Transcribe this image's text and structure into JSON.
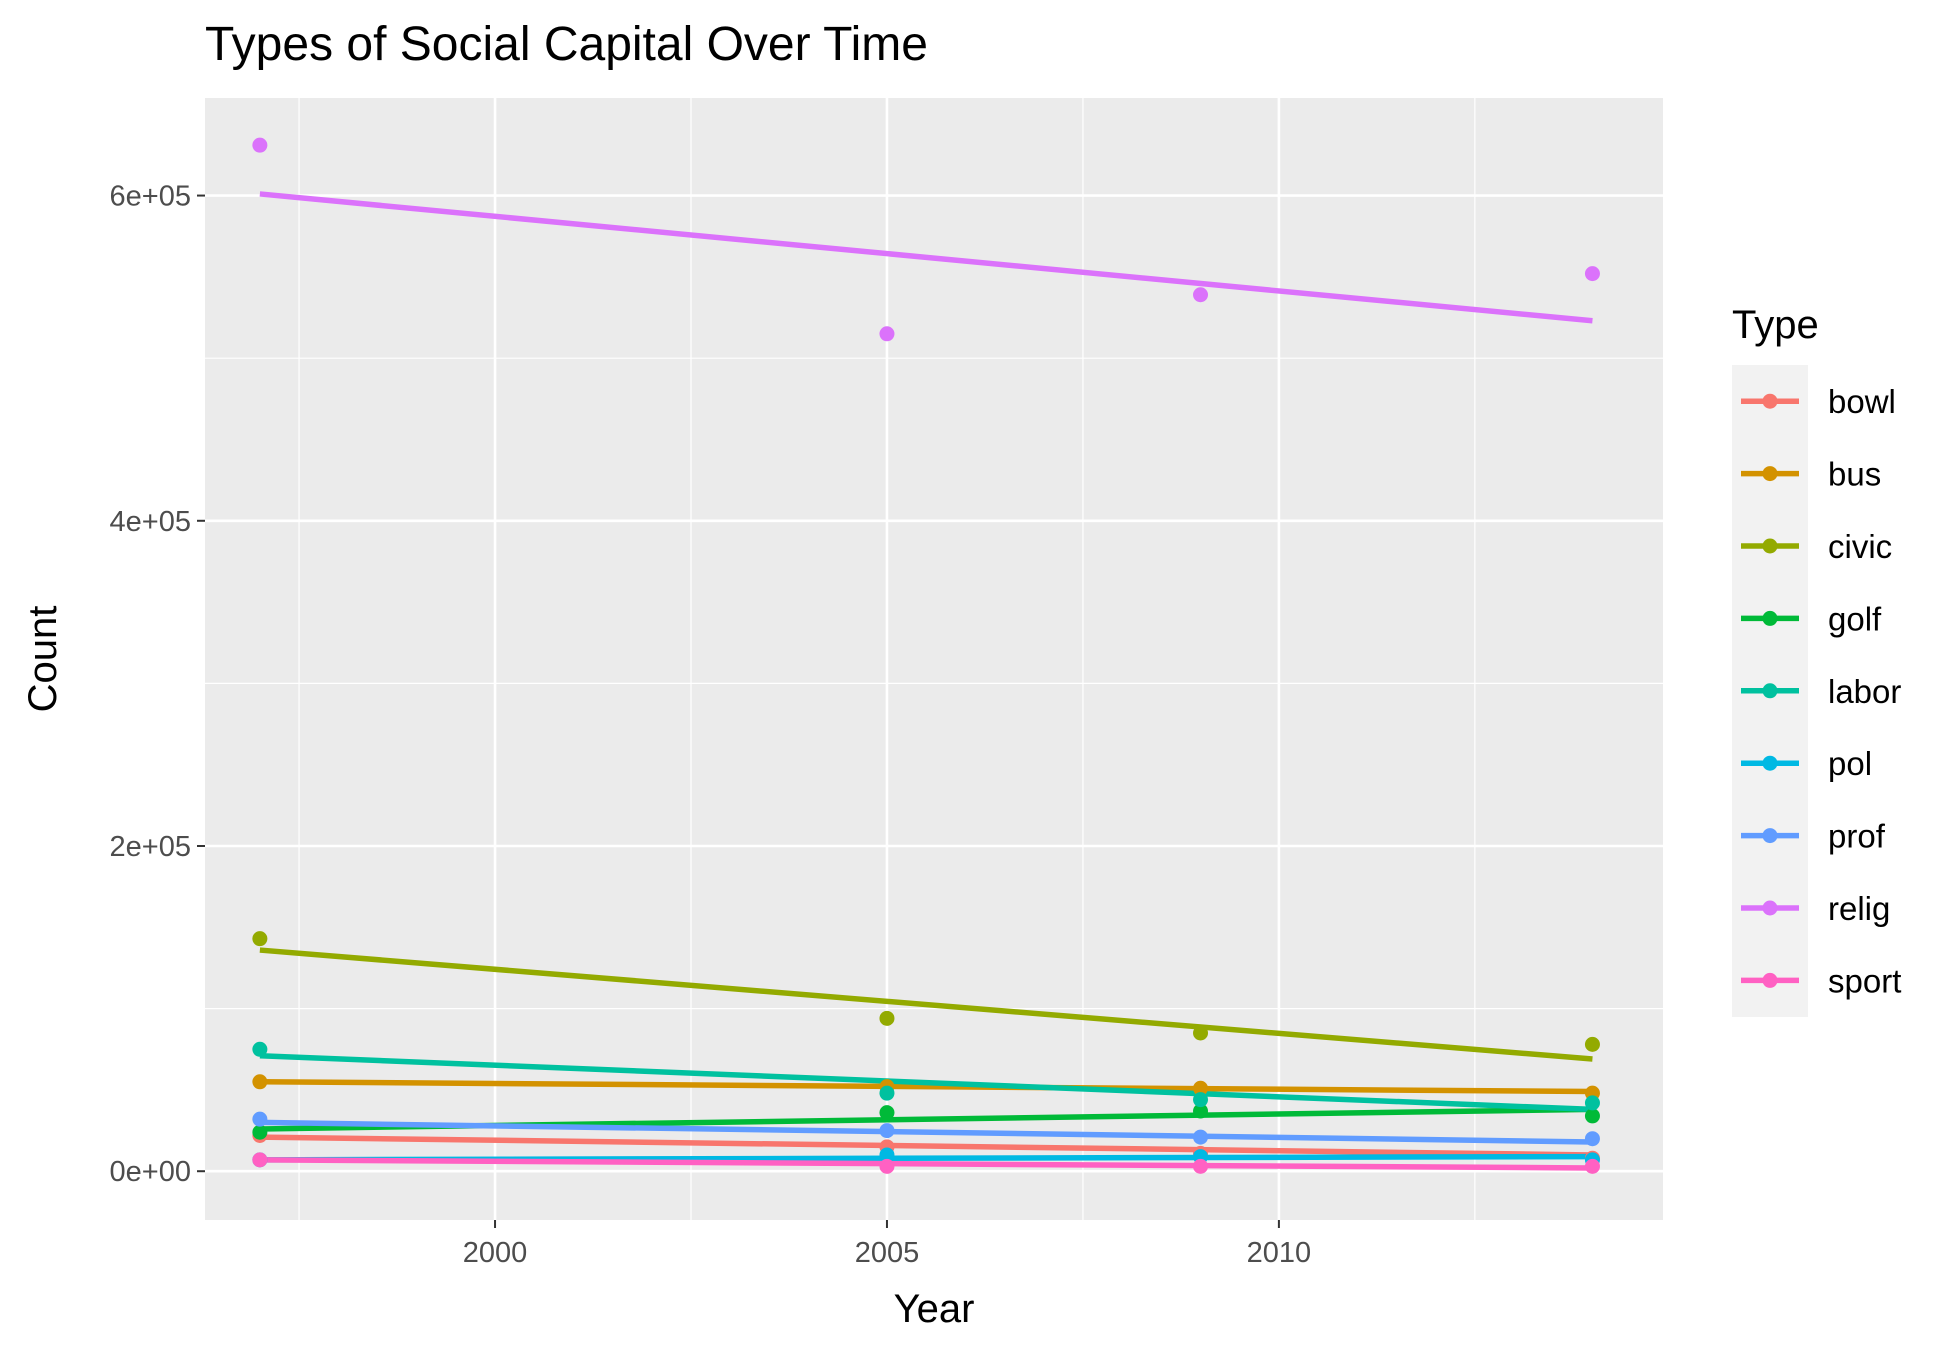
{
  "chart_data": {
    "type": "scatter",
    "title": "Types of Social Capital Over Time",
    "xlabel": "Year",
    "ylabel": "Count",
    "xlim": [
      1996.3,
      2014.9
    ],
    "ylim": [
      -30000,
      660000
    ],
    "x_ticks": [
      2000,
      2005,
      2010
    ],
    "x_tick_labels": [
      "2000",
      "2005",
      "2010"
    ],
    "y_ticks": [
      0,
      200000,
      400000,
      600000
    ],
    "y_tick_labels": [
      "0e+00",
      "2e+05",
      "4e+05",
      "6e+05"
    ],
    "grid": true,
    "legend": {
      "title": "Type",
      "position": "right"
    },
    "overlay": "linear trend line per series",
    "series": [
      {
        "name": "bowl",
        "color": "#F8766D",
        "x": [
          1997,
          2005,
          2009,
          2014
        ],
        "y": [
          22000,
          15000,
          11000,
          8000
        ],
        "trend": [
          [
            1997,
            21000
          ],
          [
            2014,
            10000
          ]
        ]
      },
      {
        "name": "bus",
        "color": "#D39200",
        "x": [
          1997,
          2005,
          2009,
          2014
        ],
        "y": [
          55000,
          52000,
          51000,
          48000
        ],
        "trend": [
          [
            1997,
            55000
          ],
          [
            2014,
            49000
          ]
        ]
      },
      {
        "name": "civic",
        "color": "#93AA00",
        "x": [
          1997,
          2005,
          2009,
          2014
        ],
        "y": [
          143000,
          94000,
          85000,
          78000
        ],
        "trend": [
          [
            1997,
            136000
          ],
          [
            2014,
            69000
          ]
        ]
      },
      {
        "name": "golf",
        "color": "#00BA38",
        "x": [
          1997,
          2005,
          2009,
          2014
        ],
        "y": [
          24000,
          36000,
          37000,
          34000
        ],
        "trend": [
          [
            1997,
            26000
          ],
          [
            2014,
            38000
          ]
        ]
      },
      {
        "name": "labor",
        "color": "#00C19F",
        "x": [
          1997,
          2005,
          2009,
          2014
        ],
        "y": [
          75000,
          48000,
          44000,
          42000
        ],
        "trend": [
          [
            1997,
            71000
          ],
          [
            2014,
            38000
          ]
        ]
      },
      {
        "name": "pol",
        "color": "#00B9E3",
        "x": [
          1997,
          2005,
          2009,
          2014
        ],
        "y": [
          7000,
          10000,
          9000,
          7000
        ],
        "trend": [
          [
            1997,
            7000
          ],
          [
            2014,
            9000
          ]
        ]
      },
      {
        "name": "prof",
        "color": "#619CFF",
        "x": [
          1997,
          2005,
          2009,
          2014
        ],
        "y": [
          32000,
          25000,
          21000,
          20000
        ],
        "trend": [
          [
            1997,
            30000
          ],
          [
            2014,
            18000
          ]
        ]
      },
      {
        "name": "relig",
        "color": "#DB72FB",
        "x": [
          1997,
          2005,
          2009,
          2014
        ],
        "y": [
          631000,
          515000,
          539000,
          552000
        ],
        "trend": [
          [
            1997,
            601000
          ],
          [
            2014,
            523000
          ]
        ]
      },
      {
        "name": "sport",
        "color": "#FF61C3",
        "x": [
          1997,
          2005,
          2009,
          2014
        ],
        "y": [
          7000,
          3000,
          3000,
          3000
        ],
        "trend": [
          [
            1997,
            7000
          ],
          [
            2014,
            2000
          ]
        ]
      }
    ]
  }
}
